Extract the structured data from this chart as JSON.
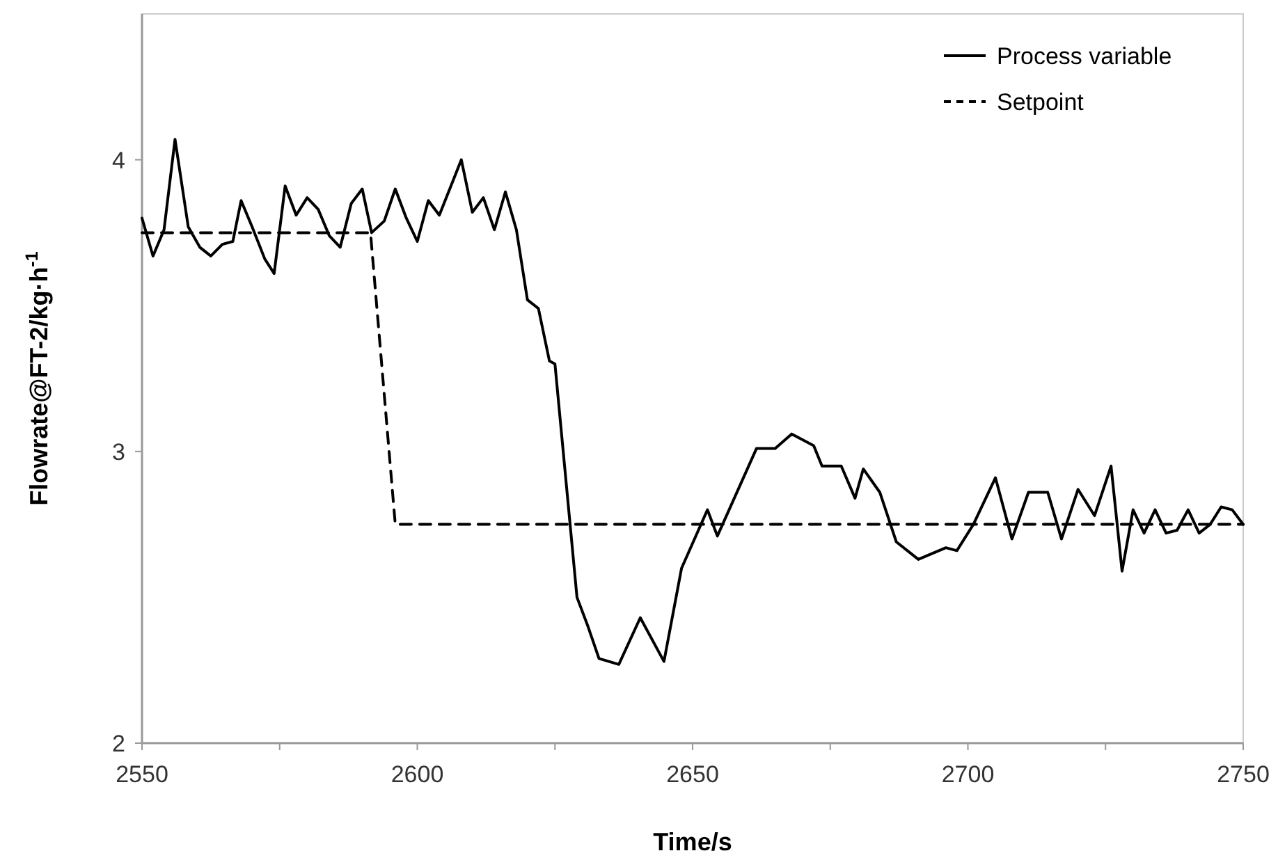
{
  "chart_data": {
    "type": "line",
    "xlabel": "Time/s",
    "ylabel": "Flowrate@FT-2/kg·h$^{-1}$",
    "xlim": [
      2550,
      2750
    ],
    "ylim": [
      2,
      4.5
    ],
    "xticks": [
      2550,
      {
        "value": 2575,
        "label": null
      },
      2600,
      {
        "value": 2625,
        "label": null
      },
      2650,
      {
        "value": 2675,
        "label": null
      },
      2700,
      {
        "value": 2725,
        "label": null
      },
      2750
    ],
    "yticks": [
      2,
      3,
      4
    ],
    "grid": false,
    "legend": "top right",
    "series": [
      {
        "name": "Process variable",
        "color": "#000000",
        "line_style": "solid",
        "x": [
          2550,
          2552,
          2554,
          2556,
          2558.4,
          2560.5,
          2562.5,
          2564.6,
          2566.5,
          2568,
          2570,
          2572.3,
          2574,
          2576,
          2578,
          2580,
          2582,
          2584,
          2586,
          2588,
          2590,
          2591.7,
          2594,
          2596,
          2598,
          2600,
          2602,
          2604,
          2608,
          2610,
          2612,
          2614,
          2616,
          2618,
          2620,
          2622,
          2624,
          2625,
          2629,
          2631,
          2633,
          2636.6,
          2640.5,
          2644.8,
          2648,
          2652.7,
          2654.5,
          2661.6,
          2665,
          2668,
          2672,
          2673.5,
          2677,
          2679.5,
          2681,
          2684,
          2687,
          2691,
          2696,
          2698,
          2701,
          2705,
          2708,
          2711,
          2714.5,
          2717,
          2720,
          2723,
          2726,
          2728,
          2730,
          2732,
          2734,
          2736,
          2738,
          2740,
          2742,
          2744,
          2746,
          2748,
          2750
        ],
        "values": [
          3.8,
          3.67,
          3.76,
          4.07,
          3.77,
          3.7,
          3.67,
          3.71,
          3.72,
          3.86,
          3.77,
          3.66,
          3.61,
          3.91,
          3.81,
          3.87,
          3.83,
          3.74,
          3.7,
          3.85,
          3.9,
          3.75,
          3.79,
          3.9,
          3.8,
          3.72,
          3.86,
          3.81,
          4.0,
          3.82,
          3.87,
          3.76,
          3.89,
          3.76,
          3.52,
          3.49,
          3.31,
          3.3,
          2.5,
          2.4,
          2.29,
          2.27,
          2.43,
          2.28,
          2.6,
          2.8,
          2.71,
          3.01,
          3.01,
          3.06,
          3.02,
          2.95,
          2.95,
          2.84,
          2.94,
          2.86,
          2.69,
          2.63,
          2.67,
          2.66,
          2.75,
          2.91,
          2.7,
          2.86,
          2.86,
          2.7,
          2.87,
          2.78,
          2.95,
          2.59,
          2.8,
          2.72,
          2.8,
          2.72,
          2.73,
          2.8,
          2.72,
          2.75,
          2.81,
          2.8,
          2.75
        ]
      },
      {
        "name": "Setpoint",
        "color": "#000000",
        "line_style": "dashed",
        "x": [
          2550,
          2591.5,
          2596,
          2750
        ],
        "values": [
          3.75,
          3.75,
          2.75,
          2.75
        ]
      }
    ]
  }
}
